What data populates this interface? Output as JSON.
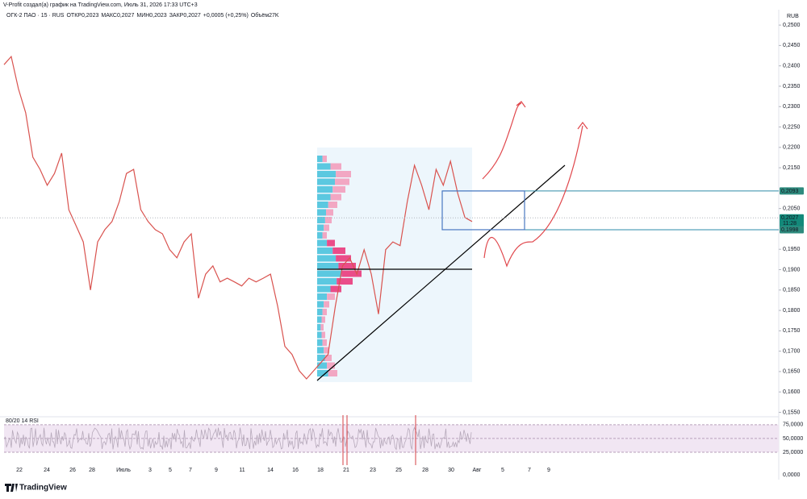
{
  "header": {
    "attribution": "V-Profit создал(а) график на TradingView.com, Июль 31, 2026 17:33 UTC+3",
    "symbol": "ОГК-2 ПАО · 15 · RUS",
    "ohlc": [
      [
        "ОТКР",
        "0,2023"
      ],
      [
        "МАКС",
        "0,2027"
      ],
      [
        "МИН",
        "0,2023"
      ],
      [
        "ЗАКР",
        "0,2027"
      ]
    ],
    "change": "+0,0005 (+0,25%)",
    "volume_label": "Объём",
    "volume": "27K"
  },
  "chart_data": {
    "type": "line",
    "currency": "RUB",
    "color": "#d9534f",
    "values": [
      0.2403,
      0.2423,
      0.2344,
      0.2285,
      0.2176,
      0.2146,
      0.2107,
      0.2136,
      0.2186,
      0.2047,
      0.2008,
      0.1968,
      0.185,
      0.1968,
      0.1998,
      0.2018,
      0.2067,
      0.2136,
      0.2146,
      0.2047,
      0.2018,
      0.1998,
      0.1988,
      0.1949,
      0.1929,
      0.1968,
      0.1988,
      0.183,
      0.1889,
      0.1909,
      0.187,
      0.1879,
      0.187,
      0.186,
      0.1879,
      0.187,
      0.1879,
      0.1889,
      0.181,
      0.1712,
      0.1692,
      0.1652,
      0.1632,
      0.1652,
      0.1672,
      0.1692,
      0.181,
      0.1909,
      0.1929,
      0.1889,
      0.1949,
      0.1889,
      0.1791,
      0.1949,
      0.1968,
      0.1959,
      0.2067,
      0.2156,
      0.2107,
      0.2047,
      0.2146,
      0.2107,
      0.2166,
      0.2087,
      0.2028,
      0.2018
    ],
    "ylim": [
      0.1543,
      0.2522
    ],
    "yticks": [
      {
        "value": 0.25,
        "label": "0,2500"
      },
      {
        "value": 0.245,
        "label": "0,2450"
      },
      {
        "value": 0.24,
        "label": "0,2400"
      },
      {
        "value": 0.235,
        "label": "0,2350"
      },
      {
        "value": 0.23,
        "label": "0,2300"
      },
      {
        "value": 0.225,
        "label": "0,2250"
      },
      {
        "value": 0.22,
        "label": "0,2200"
      },
      {
        "value": 0.215,
        "label": "0,2150"
      },
      {
        "value": 0.205,
        "label": "0,2050"
      },
      {
        "value": 0.195,
        "label": "0,1950"
      },
      {
        "value": 0.19,
        "label": "0,1900"
      },
      {
        "value": 0.185,
        "label": "0,1850"
      },
      {
        "value": 0.18,
        "label": "0,1800"
      },
      {
        "value": 0.175,
        "label": "0,1750"
      },
      {
        "value": 0.17,
        "label": "0,1700"
      },
      {
        "value": 0.165,
        "label": "0,1650"
      },
      {
        "value": 0.16,
        "label": "0,1600"
      },
      {
        "value": 0.155,
        "label": "0,1550"
      }
    ],
    "price_labels": [
      {
        "value": 0.2093,
        "label": "0,2093"
      },
      {
        "value": 0.2027,
        "label": "0,2027",
        "time": "11:28"
      },
      {
        "value": 0.1998,
        "label": "0,1998"
      }
    ],
    "xtick_labels": [
      "22",
      "24",
      "26",
      "28",
      "Июль",
      "3",
      "5",
      "7",
      "9",
      "11",
      "14",
      "16",
      "18",
      "21",
      "23",
      "25",
      "28",
      "30",
      "Авг",
      "5",
      "7",
      "9"
    ],
    "rsi": {
      "title": "80/20 14 RSI",
      "ylim": [
        0,
        88
      ],
      "yticks": [
        {
          "value": 75,
          "label": "75,0000"
        },
        {
          "value": 50,
          "label": "50,0000"
        },
        {
          "value": 25,
          "label": "25,0000"
        },
        {
          "value": 0,
          "label": "0,0000"
        }
      ]
    }
  },
  "logo": "TradingView"
}
